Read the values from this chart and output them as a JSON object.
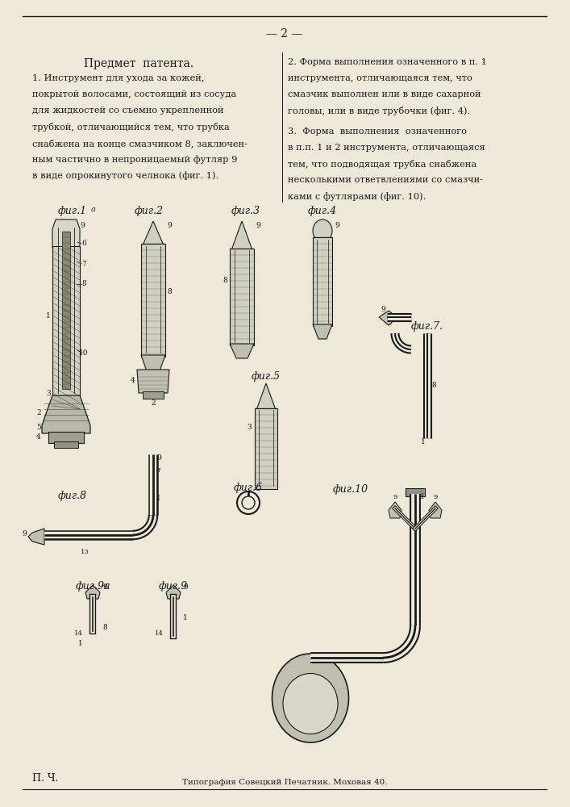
{
  "page_number": "2",
  "background_color": "#f0ece4",
  "border_color": "#2a2a2a",
  "title_text": "Предмет  патента.",
  "footer_left": "П. Ч.",
  "footer_center": "Типография Совецкий Печатник. Моховая 40.",
  "text_color": "#1a1a1a",
  "line_color": "#1a1a1a",
  "paper_color": "#ede8d8",
  "col1_lines": [
    "1. Инструмент для ухода за кожей,",
    "покрытой волосами, состоящий из сосуда",
    "для жидкостей со съемно укрепленной",
    "трубкой, отличающийся тем, что трубка",
    "снабжена на конце смазчиком 8, заключен-",
    "ным частично в непроницаемый футляр 9",
    "в виде опрокинутого челнока (фиг. 1)."
  ],
  "col2_lines_1": [
    "2. Форма выполнения означенного в п. 1",
    "инструмента, отличающаяся тем, что",
    "смазчик выполнен или в виде сахарной",
    "головы, или в виде трубочки (фиг. 4)."
  ],
  "col2_lines_2": [
    "3.  Форма  выполнения  означенного",
    "в п.п. 1 и 2 инструмента, отличающаяся",
    "тем, что подводящая трубка снабжена",
    "несколькими ответвлениями со смазчи-",
    "ками с футлярами (фиг. 10)."
  ]
}
